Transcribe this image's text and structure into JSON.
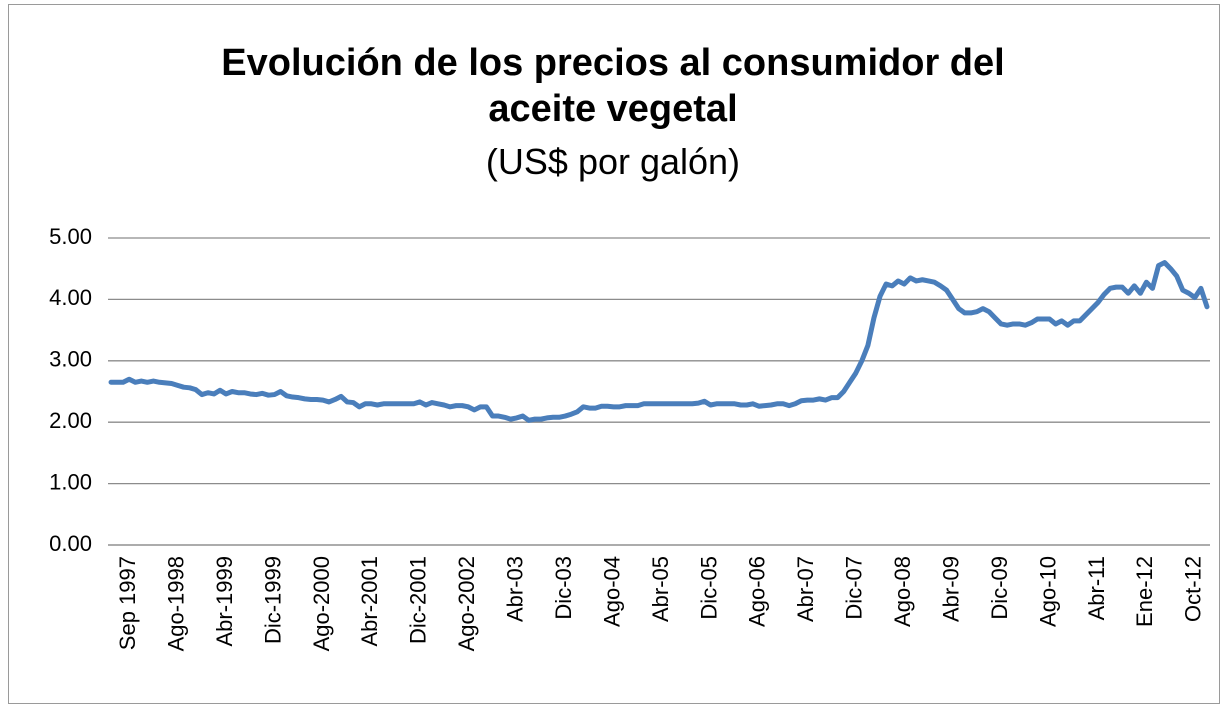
{
  "chart_data": {
    "type": "line",
    "title": "Evolución de los precios al consumidor del aceite vegetal",
    "subtitle": "(US$ por galón)",
    "color": "#4a7ebb",
    "categories": [
      null,
      null,
      null,
      "Sep 1997",
      null,
      null,
      null,
      null,
      null,
      null,
      null,
      "Ago-1998",
      null,
      null,
      null,
      null,
      null,
      null,
      null,
      "Abr-1999",
      null,
      null,
      null,
      null,
      null,
      null,
      null,
      "Dic-1999",
      null,
      null,
      null,
      null,
      null,
      null,
      null,
      "Ago-2000",
      null,
      null,
      null,
      null,
      null,
      null,
      null,
      "Abr-2001",
      null,
      null,
      null,
      null,
      null,
      null,
      null,
      "Dic-2001",
      null,
      null,
      null,
      null,
      null,
      null,
      null,
      "Ago-2002",
      null,
      null,
      null,
      null,
      null,
      null,
      null,
      "Abr-03",
      null,
      null,
      null,
      null,
      null,
      null,
      null,
      "Dic-03",
      null,
      null,
      null,
      null,
      null,
      null,
      null,
      "Ago-04",
      null,
      null,
      null,
      null,
      null,
      null,
      null,
      "Abr-05",
      null,
      null,
      null,
      null,
      null,
      null,
      null,
      "Dic-05",
      null,
      null,
      null,
      null,
      null,
      null,
      null,
      "Ago-06",
      null,
      null,
      null,
      null,
      null,
      null,
      null,
      "Abr-07",
      null,
      null,
      null,
      null,
      null,
      null,
      null,
      "Dic-07",
      null,
      null,
      null,
      null,
      null,
      null,
      null,
      "Ago-08",
      null,
      null,
      null,
      null,
      null,
      null,
      null,
      "Abr-09",
      null,
      null,
      null,
      null,
      null,
      null,
      null,
      "Dic-09",
      null,
      null,
      null,
      null,
      null,
      null,
      null,
      "Ago-10",
      null,
      null,
      null,
      null,
      null,
      null,
      null,
      "Abr-11",
      null,
      null,
      null,
      null,
      null,
      null,
      null,
      "Ene-12",
      null,
      null,
      null,
      null,
      null,
      null,
      null,
      "Oct-12",
      null,
      null
    ],
    "values": [
      2.65,
      2.65,
      2.65,
      2.7,
      2.65,
      2.67,
      2.65,
      2.67,
      2.65,
      2.64,
      2.63,
      2.6,
      2.57,
      2.56,
      2.53,
      2.45,
      2.48,
      2.46,
      2.52,
      2.46,
      2.5,
      2.48,
      2.48,
      2.46,
      2.45,
      2.47,
      2.44,
      2.45,
      2.5,
      2.43,
      2.41,
      2.4,
      2.38,
      2.37,
      2.37,
      2.36,
      2.33,
      2.37,
      2.42,
      2.33,
      2.32,
      2.25,
      2.3,
      2.3,
      2.28,
      2.3,
      2.3,
      2.3,
      2.3,
      2.3,
      2.3,
      2.33,
      2.28,
      2.32,
      2.3,
      2.28,
      2.25,
      2.27,
      2.27,
      2.25,
      2.2,
      2.25,
      2.25,
      2.1,
      2.1,
      2.08,
      2.05,
      2.07,
      2.1,
      2.03,
      2.05,
      2.05,
      2.07,
      2.08,
      2.08,
      2.1,
      2.13,
      2.17,
      2.25,
      2.23,
      2.23,
      2.26,
      2.26,
      2.25,
      2.25,
      2.27,
      2.27,
      2.27,
      2.3,
      2.3,
      2.3,
      2.3,
      2.3,
      2.3,
      2.3,
      2.3,
      2.3,
      2.31,
      2.34,
      2.28,
      2.3,
      2.3,
      2.3,
      2.3,
      2.28,
      2.28,
      2.3,
      2.26,
      2.27,
      2.28,
      2.3,
      2.3,
      2.27,
      2.3,
      2.35,
      2.36,
      2.36,
      2.38,
      2.36,
      2.4,
      2.4,
      2.5,
      2.65,
      2.8,
      3.0,
      3.25,
      3.7,
      4.05,
      4.25,
      4.22,
      4.3,
      4.25,
      4.35,
      4.3,
      4.32,
      4.3,
      4.28,
      4.22,
      4.15,
      4.0,
      3.85,
      3.78,
      3.78,
      3.8,
      3.85,
      3.8,
      3.7,
      3.6,
      3.58,
      3.6,
      3.6,
      3.58,
      3.62,
      3.68,
      3.68,
      3.68,
      3.6,
      3.65,
      3.58,
      3.65,
      3.65,
      3.75,
      3.85,
      3.95,
      4.08,
      4.18,
      4.2,
      4.2,
      4.1,
      4.22,
      4.1,
      4.28,
      4.18,
      4.55,
      4.6,
      4.5,
      4.38,
      4.15,
      4.1,
      4.03,
      4.18,
      3.88
    ],
    "ylim": [
      0,
      5
    ],
    "yticks": [
      {
        "value": 0,
        "label": "0.00"
      },
      {
        "value": 1,
        "label": "1.00"
      },
      {
        "value": 2,
        "label": "2.00"
      },
      {
        "value": 3,
        "label": "3.00"
      },
      {
        "value": 4,
        "label": "4.00"
      },
      {
        "value": 5,
        "label": "5.00"
      }
    ],
    "grid": true
  }
}
